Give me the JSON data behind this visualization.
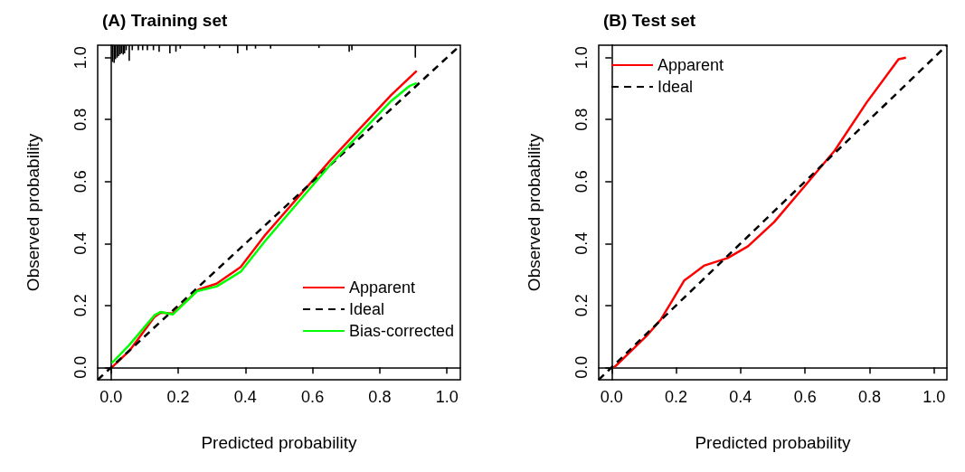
{
  "chart_data": [
    {
      "type": "line",
      "title": "(A) Training set",
      "xlabel": "Predicted probability",
      "ylabel": "Observed probability",
      "xlim": [
        -0.04,
        1.04
      ],
      "ylim": [
        -0.04,
        1.04
      ],
      "xticks": [
        {
          "value": 0,
          "label": "0.0"
        },
        {
          "value": 0.2,
          "label": "0.2"
        },
        {
          "value": 0.4,
          "label": "0.4"
        },
        {
          "value": 0.6,
          "label": "0.6"
        },
        {
          "value": 0.8,
          "label": "0.8"
        },
        {
          "value": 1,
          "label": "1.0"
        }
      ],
      "yticks": [
        {
          "value": 0,
          "label": "0.0"
        },
        {
          "value": 0.2,
          "label": "0.2"
        },
        {
          "value": 0.4,
          "label": "0.4"
        },
        {
          "value": 0.6,
          "label": "0.6"
        },
        {
          "value": 0.8,
          "label": "0.8"
        },
        {
          "value": 1,
          "label": "1.0"
        }
      ],
      "legend": "bottom right",
      "marker": "none",
      "series": [
        {
          "type": "bar",
          "color": "#000000",
          "x": [
            0.004,
            0.009,
            0.013,
            0.018,
            0.022,
            0.027,
            0.031,
            0.036,
            0.04,
            0.045,
            0.054,
            0.063,
            0.081,
            0.094,
            0.108,
            0.126,
            0.143,
            0.175,
            0.193,
            0.206,
            0.278,
            0.323,
            0.377,
            0.404,
            0.43,
            0.475,
            0.619,
            0.709,
            0.717,
            0.906
          ],
          "base": [
            0.986,
            0.983,
            0.995,
            1.0,
            1.005,
            1.01,
            1.014,
            1.01,
            1.014,
            1.024,
            0.99,
            1.024,
            1.024,
            1.024,
            1.024,
            1.024,
            1.019,
            1.014,
            1.019,
            1.029,
            1.029,
            1.031,
            1.014,
            1.024,
            1.029,
            1.029,
            1.031,
            1.019,
            1.024,
            1.0
          ],
          "values": [
            0.054,
            0.057,
            0.045,
            0.04,
            0.035,
            0.03,
            0.026,
            0.03,
            0.026,
            0.016,
            0.05,
            0.016,
            0.016,
            0.016,
            0.016,
            0.016,
            0.021,
            0.026,
            0.021,
            0.011,
            0.011,
            0.009,
            0.026,
            0.016,
            0.011,
            0.011,
            0.009,
            0.021,
            0.016,
            0.04
          ]
        },
        {
          "name": "Apparent",
          "color": "#ff0000",
          "line_style": "solid",
          "x": [
            0.002,
            0.054,
            0.13,
            0.148,
            0.184,
            0.26,
            0.314,
            0.386,
            0.457,
            0.655,
            0.834,
            0.91
          ],
          "values": [
            0.0,
            0.053,
            0.164,
            0.177,
            0.174,
            0.251,
            0.27,
            0.324,
            0.425,
            0.671,
            0.879,
            0.957
          ]
        },
        {
          "name": "Ideal",
          "color": "#000000",
          "line_style": "dashed",
          "x": [
            -0.04,
            1.04
          ],
          "values": [
            -0.04,
            1.04
          ]
        },
        {
          "name": "Bias-corrected",
          "color": "#00ff00",
          "line_style": "solid",
          "x": [
            0.002,
            0.054,
            0.13,
            0.148,
            0.184,
            0.256,
            0.314,
            0.386,
            0.457,
            0.655,
            0.834,
            0.888,
            0.91
          ],
          "values": [
            0.014,
            0.072,
            0.169,
            0.179,
            0.171,
            0.246,
            0.261,
            0.309,
            0.406,
            0.657,
            0.86,
            0.908,
            0.918
          ]
        }
      ]
    },
    {
      "type": "line",
      "title": "(B) Test set",
      "xlabel": "Predicted probability",
      "ylabel": "Observed probability",
      "xlim": [
        -0.04,
        1.04
      ],
      "ylim": [
        -0.04,
        1.04
      ],
      "xticks": [
        {
          "value": 0,
          "label": "0.0"
        },
        {
          "value": 0.2,
          "label": "0.2"
        },
        {
          "value": 0.4,
          "label": "0.4"
        },
        {
          "value": 0.6,
          "label": "0.6"
        },
        {
          "value": 0.8,
          "label": "0.8"
        },
        {
          "value": 1,
          "label": "1.0"
        }
      ],
      "yticks": [
        {
          "value": 0,
          "label": "0.0"
        },
        {
          "value": 0.2,
          "label": "0.2"
        },
        {
          "value": 0.4,
          "label": "0.4"
        },
        {
          "value": 0.6,
          "label": "0.6"
        },
        {
          "value": 0.8,
          "label": "0.8"
        },
        {
          "value": 1,
          "label": "1.0"
        }
      ],
      "legend": "top left",
      "marker": "none",
      "series": [
        {
          "name": "Apparent",
          "color": "#ff0000",
          "line_style": "solid",
          "x": [
            0.007,
            0.013,
            0.108,
            0.153,
            0.189,
            0.225,
            0.288,
            0.36,
            0.423,
            0.504,
            0.602,
            0.692,
            0.791,
            0.89,
            0.913
          ],
          "values": [
            0.0,
            0.005,
            0.101,
            0.155,
            0.217,
            0.28,
            0.329,
            0.353,
            0.391,
            0.469,
            0.589,
            0.7,
            0.855,
            0.995,
            1.0
          ]
        },
        {
          "name": "Ideal",
          "color": "#000000",
          "line_style": "dashed",
          "x": [
            -0.04,
            1.04
          ],
          "values": [
            -0.04,
            1.04
          ]
        }
      ]
    }
  ]
}
